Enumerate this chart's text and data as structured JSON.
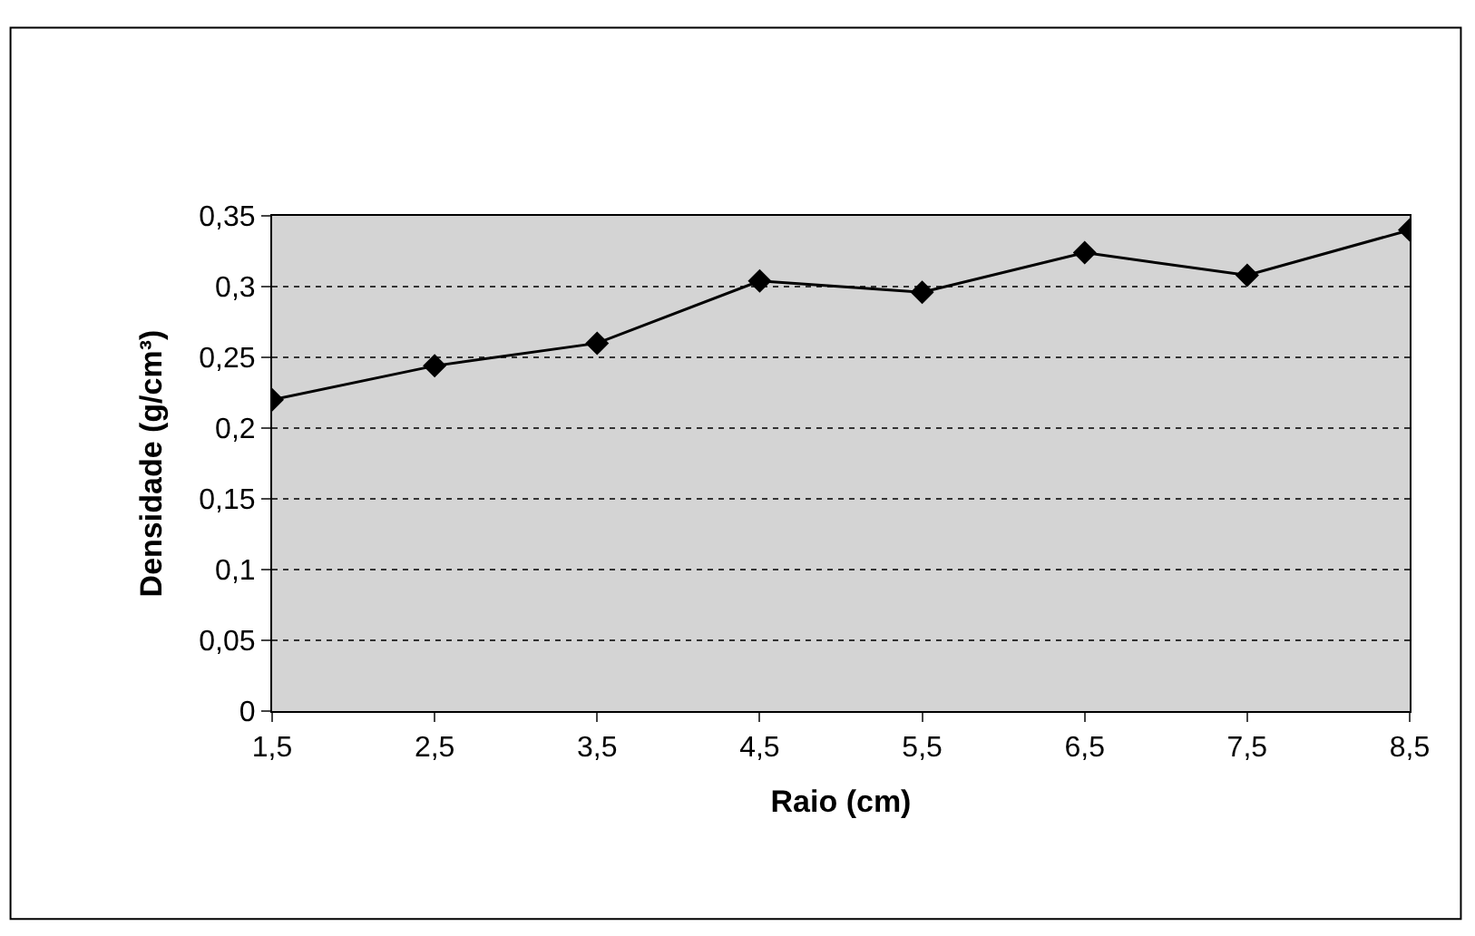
{
  "chart_data": {
    "type": "line",
    "xlabel": "Raio (cm)",
    "ylabel": "Densidade (g/cm³)",
    "x": [
      1.5,
      2.5,
      3.5,
      4.5,
      5.5,
      6.5,
      7.5,
      8.5
    ],
    "series": [
      {
        "color": "#000000",
        "values": [
          0.22,
          0.244,
          0.26,
          0.304,
          0.296,
          0.324,
          0.308,
          0.34
        ]
      }
    ],
    "xlim": [
      1.5,
      8.5
    ],
    "xticks": [
      {
        "value": 1.5,
        "label": "1,5"
      },
      {
        "value": 2.5,
        "label": "2,5"
      },
      {
        "value": 3.5,
        "label": "3,5"
      },
      {
        "value": 4.5,
        "label": "4,5"
      },
      {
        "value": 5.5,
        "label": "5,5"
      },
      {
        "value": 6.5,
        "label": "6,5"
      },
      {
        "value": 7.5,
        "label": "7,5"
      },
      {
        "value": 8.5,
        "label": "8,5"
      }
    ],
    "ylim": [
      0,
      0.35
    ],
    "yticks": [
      0,
      {
        "value": 0.05,
        "label": "0,05"
      },
      {
        "value": 0.1,
        "label": "0,1"
      },
      {
        "value": 0.15,
        "label": "0,15"
      },
      {
        "value": 0.2,
        "label": "0,2"
      },
      {
        "value": 0.25,
        "label": "0,25"
      },
      {
        "value": 0.3,
        "label": "0,3"
      },
      {
        "value": 0.35,
        "label": "0,35"
      }
    ],
    "grid": "y",
    "marker": "diamond",
    "line_style": "solid"
  }
}
